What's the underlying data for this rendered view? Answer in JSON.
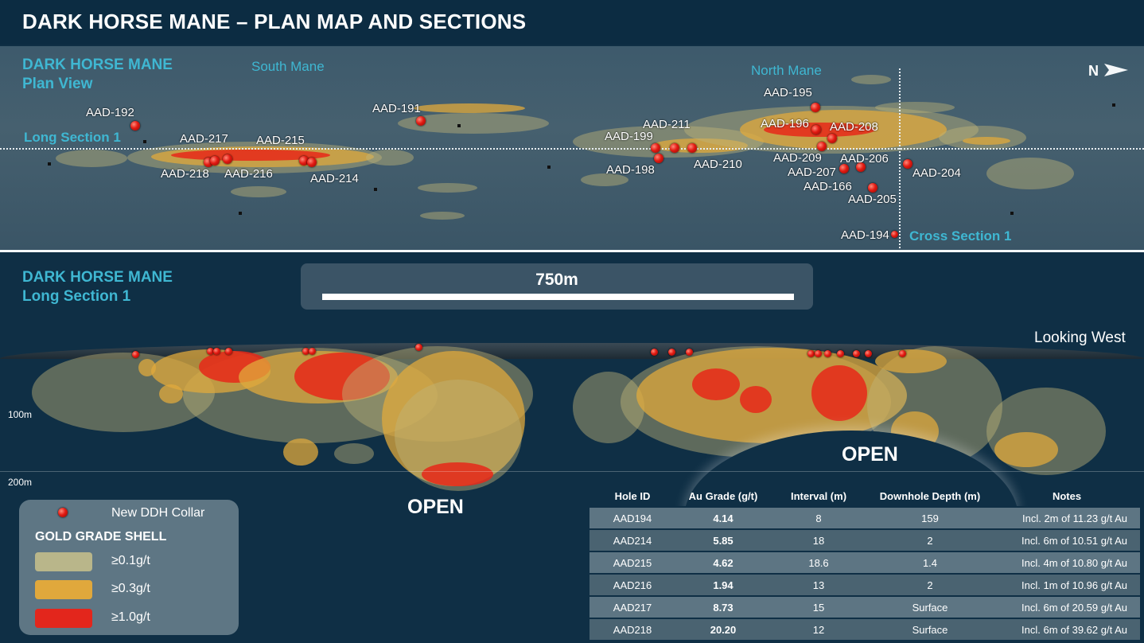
{
  "title": "DARK HORSE MANE – PLAN MAP AND SECTIONS",
  "plan": {
    "heading_line1": "DARK HORSE MANE",
    "heading_line2": "Plan View",
    "south_mane": "South Mane",
    "north_mane": "North Mane",
    "long_section": "Long Section 1",
    "cross_section": "Cross Section 1",
    "north_arrow": "N",
    "holes": [
      "AAD-192",
      "AAD-217",
      "AAD-215",
      "AAD-218",
      "AAD-216",
      "AAD-214",
      "AAD-191",
      "AAD-211",
      "AAD-199",
      "AAD-198",
      "AAD-210",
      "AAD-195",
      "AAD-196",
      "AAD-208",
      "AAD-209",
      "AAD-206",
      "AAD-207",
      "AAD-204",
      "AAD-166",
      "AAD-205",
      "AAD-194"
    ]
  },
  "section": {
    "heading_line1": "DARK HORSE MANE",
    "heading_line2": "Long Section 1",
    "scale_label": "750m",
    "looking": "Looking West",
    "depth_100": "100m",
    "depth_200": "200m",
    "open_label": "OPEN"
  },
  "legend": {
    "collar_label": "New DDH Collar",
    "title": "GOLD GRADE SHELL",
    "items": [
      {
        "label": "≥0.1g/t",
        "color": "#b9b68a"
      },
      {
        "label": "≥0.3g/t",
        "color": "#e0a83c"
      },
      {
        "label": "≥1.0g/t",
        "color": "#e3261c"
      }
    ]
  },
  "table": {
    "headers": [
      "Hole ID",
      "Au Grade (g/t)",
      "Interval (m)",
      "Downhole Depth (m)",
      "Notes"
    ],
    "rows": [
      {
        "hole": "AAD194",
        "grade": "4.14",
        "interval": "8",
        "depth": "159",
        "notes": "Incl. 2m of 11.23 g/t Au"
      },
      {
        "hole": "AAD214",
        "grade": "5.85",
        "interval": "18",
        "depth": "2",
        "notes": "Incl. 6m of 10.51 g/t Au"
      },
      {
        "hole": "AAD215",
        "grade": "4.62",
        "interval": "18.6",
        "depth": "1.4",
        "notes": "Incl. 4m of 10.80 g/t Au"
      },
      {
        "hole": "AAD216",
        "grade": "1.94",
        "interval": "13",
        "depth": "2",
        "notes": "Incl. 1m of 10.96 g/t Au"
      },
      {
        "hole": "AAD217",
        "grade": "8.73",
        "interval": "15",
        "depth": "Surface",
        "notes": "Incl. 6m of 20.59 g/t Au"
      },
      {
        "hole": "AAD218",
        "grade": "20.20",
        "interval": "12",
        "depth": "Surface",
        "notes": "Incl. 6m of 39.62 g/t Au"
      }
    ]
  },
  "colors": {
    "heading": "#3fb7d2",
    "background": "#0f2f45",
    "collar": "#e31a12"
  }
}
